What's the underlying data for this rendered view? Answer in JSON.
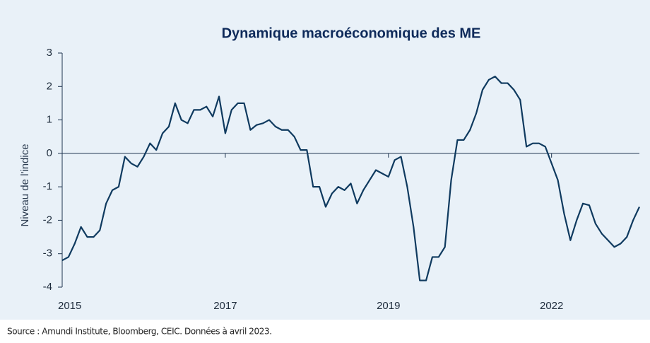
{
  "chart_data": {
    "type": "line",
    "title": "Dynamique macroéconomique des ME",
    "y_label": "Niveau de l'indice",
    "source": "Source : Amundi Institute, Bloomberg, CEIC. Données à avril 2023.",
    "color": "#0f3a5f",
    "categories": [
      "2015",
      null,
      null,
      null,
      null,
      null,
      null,
      null,
      null,
      null,
      null,
      null,
      null,
      null,
      null,
      null,
      null,
      null,
      null,
      null,
      null,
      null,
      null,
      null,
      null,
      null,
      "2017",
      null,
      null,
      null,
      null,
      null,
      null,
      null,
      null,
      null,
      null,
      null,
      null,
      null,
      null,
      null,
      null,
      null,
      null,
      null,
      null,
      null,
      null,
      null,
      null,
      null,
      "2019",
      null,
      null,
      null,
      null,
      null,
      null,
      null,
      null,
      null,
      null,
      null,
      null,
      null,
      null,
      null,
      null,
      null,
      null,
      null,
      null,
      null,
      null,
      null,
      null,
      null,
      "2022",
      null,
      null,
      null,
      null,
      null,
      null,
      null,
      null,
      null,
      null,
      null,
      null,
      null,
      null
    ],
    "values": [
      -3.2,
      -3.1,
      -2.7,
      -2.2,
      -2.5,
      -2.5,
      -2.3,
      -1.5,
      -1.1,
      -1.0,
      -0.1,
      -0.3,
      -0.4,
      -0.1,
      0.3,
      0.1,
      0.6,
      0.8,
      1.5,
      1.0,
      0.9,
      1.3,
      1.3,
      1.4,
      1.1,
      1.7,
      0.6,
      1.3,
      1.5,
      1.5,
      0.7,
      0.85,
      0.9,
      1.0,
      0.8,
      0.7,
      0.7,
      0.5,
      0.1,
      0.1,
      -1.0,
      -1.0,
      -1.6,
      -1.2,
      -1.0,
      -1.1,
      -0.9,
      -1.5,
      -1.1,
      -0.8,
      -0.5,
      -0.6,
      -0.7,
      -0.2,
      -0.1,
      -1.0,
      -2.2,
      -3.8,
      -3.8,
      -3.1,
      -3.1,
      -2.8,
      -0.8,
      0.4,
      0.4,
      0.7,
      1.2,
      1.9,
      2.2,
      2.3,
      2.1,
      2.1,
      1.9,
      1.6,
      0.2,
      0.3,
      0.3,
      0.2,
      -0.3,
      -0.8,
      -1.8,
      -2.6,
      -2.0,
      -1.5,
      -1.55,
      -2.1,
      -2.4,
      -2.6,
      -2.8,
      -2.7,
      -2.5,
      -2.0,
      -1.6
    ],
    "ylim": [
      -4,
      3
    ],
    "yticks": [
      -4,
      -3,
      -2,
      -1,
      0,
      1,
      2,
      3
    ]
  }
}
